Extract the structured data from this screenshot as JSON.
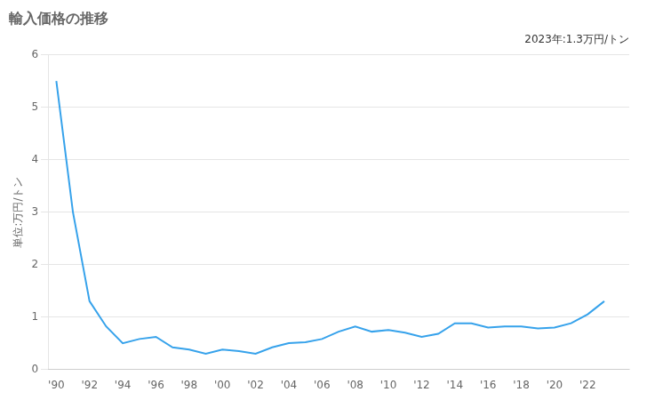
{
  "chart_data": {
    "type": "line",
    "title": "輸入価格の推移",
    "ylabel": "単位:万円/トン",
    "annotation": "2023年:1.3万円/トン",
    "x": [
      1990,
      1991,
      1992,
      1993,
      1994,
      1995,
      1996,
      1997,
      1998,
      1999,
      2000,
      2001,
      2002,
      2003,
      2004,
      2005,
      2006,
      2007,
      2008,
      2009,
      2010,
      2011,
      2012,
      2013,
      2014,
      2015,
      2016,
      2017,
      2018,
      2019,
      2020,
      2021,
      2022,
      2023
    ],
    "values": [
      5.5,
      3.0,
      1.3,
      0.82,
      0.5,
      0.58,
      0.62,
      0.42,
      0.38,
      0.3,
      0.38,
      0.35,
      0.3,
      0.42,
      0.5,
      0.52,
      0.58,
      0.72,
      0.82,
      0.72,
      0.75,
      0.7,
      0.62,
      0.68,
      0.88,
      0.88,
      0.8,
      0.82,
      0.82,
      0.78,
      0.8,
      0.88,
      1.05,
      1.3
    ],
    "xlim": [
      1989.5,
      2024.5
    ],
    "xticks": [
      {
        "value": 1990,
        "label": "'90"
      },
      {
        "value": 1992,
        "label": "'92"
      },
      {
        "value": 1994,
        "label": "'94"
      },
      {
        "value": 1996,
        "label": "'96"
      },
      {
        "value": 1998,
        "label": "'98"
      },
      {
        "value": 2000,
        "label": "'00"
      },
      {
        "value": 2002,
        "label": "'02"
      },
      {
        "value": 2004,
        "label": "'04"
      },
      {
        "value": 2006,
        "label": "'06"
      },
      {
        "value": 2008,
        "label": "'08"
      },
      {
        "value": 2010,
        "label": "'10"
      },
      {
        "value": 2012,
        "label": "'12"
      },
      {
        "value": 2014,
        "label": "'14"
      },
      {
        "value": 2016,
        "label": "'16"
      },
      {
        "value": 2018,
        "label": "'18"
      },
      {
        "value": 2020,
        "label": "'20"
      },
      {
        "value": 2022,
        "label": "'22"
      }
    ],
    "ylim": [
      0,
      6
    ],
    "yticks": [
      0,
      1,
      2,
      3,
      4,
      5,
      6
    ],
    "grid": "y"
  }
}
